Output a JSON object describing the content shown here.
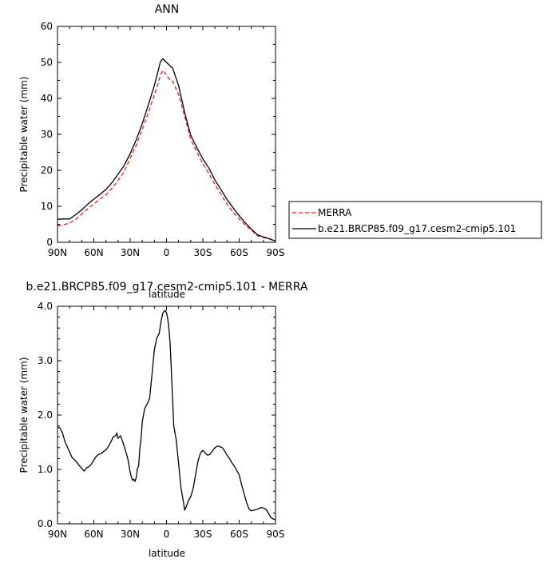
{
  "chart_data": [
    {
      "type": "line",
      "title": "ANN",
      "xlabel": "latitude",
      "ylabel": "Precipitable water (mm)",
      "xlim": [
        90,
        -90
      ],
      "ylim": [
        0,
        60
      ],
      "xticks": [
        90,
        60,
        30,
        0,
        -30,
        -60,
        -90
      ],
      "xtick_labels": [
        "90N",
        "60N",
        "30N",
        "0",
        "30S",
        "60S",
        "90S"
      ],
      "yticks": [
        0,
        10,
        20,
        30,
        40,
        50,
        60
      ],
      "ytick_labels": [
        "0",
        "10",
        "20",
        "30",
        "40",
        "50",
        "60"
      ],
      "legend_position": "right",
      "grid": false,
      "x": [
        90,
        85,
        80,
        75,
        70,
        65,
        60,
        55,
        50,
        45,
        40,
        35,
        30,
        25,
        20,
        15,
        10,
        7,
        5,
        3,
        0,
        -3,
        -5,
        -10,
        -15,
        -20,
        -25,
        -30,
        -35,
        -40,
        -45,
        -50,
        -55,
        -60,
        -65,
        -70,
        -75,
        -80,
        -85,
        -90
      ],
      "series": [
        {
          "name": "MERRA",
          "color": "#e8231f",
          "dash": "dashed",
          "values": [
            4.6,
            4.9,
            5.3,
            6.4,
            7.8,
            9.3,
            10.7,
            12.0,
            13.2,
            15.0,
            17.2,
            19.6,
            23.4,
            27.0,
            31.5,
            36.0,
            41.0,
            44.0,
            46.5,
            47.8,
            46.5,
            45.0,
            44.8,
            41.0,
            35.0,
            28.6,
            25.1,
            21.8,
            19.1,
            16.0,
            13.3,
            10.6,
            8.3,
            6.5,
            4.8,
            3.4,
            1.8,
            1.3,
            0.9,
            0.3
          ]
        },
        {
          "name": "b.e21.BRCP85.f09_g17.cesm2-cmip5.101",
          "color": "#000000",
          "dash": "solid",
          "values": [
            6.4,
            6.5,
            6.5,
            7.7,
            9.0,
            10.6,
            12.0,
            13.3,
            14.7,
            16.6,
            18.9,
            21.3,
            24.6,
            28.5,
            33.0,
            38.2,
            43.6,
            47.5,
            50.2,
            51.0,
            50.0,
            49.0,
            48.5,
            43.5,
            36.0,
            29.8,
            26.3,
            23.2,
            20.6,
            17.3,
            14.6,
            11.9,
            9.6,
            7.4,
            5.4,
            3.7,
            2.1,
            1.5,
            1.0,
            0.3
          ]
        }
      ]
    },
    {
      "type": "line",
      "title": "b.e21.BRCP85.f09_g17.cesm2-cmip5.101 - MERRA",
      "xlabel": "latitude",
      "ylabel": "Precipitable water (mm)",
      "xlim": [
        90,
        -90
      ],
      "ylim": [
        0,
        4
      ],
      "xticks": [
        90,
        60,
        30,
        0,
        -30,
        -60,
        -90
      ],
      "xtick_labels": [
        "90N",
        "60N",
        "30N",
        "0",
        "30S",
        "60S",
        "90S"
      ],
      "yticks": [
        0,
        1,
        2,
        3,
        4
      ],
      "ytick_labels": [
        "0.0",
        "1.0",
        "2.0",
        "3.0",
        "4.0"
      ],
      "grid": false,
      "x": [
        90,
        88,
        86,
        84,
        82,
        80,
        78,
        76,
        74,
        72,
        70,
        68,
        66,
        64,
        62,
        60,
        58,
        56,
        54,
        52,
        50,
        48,
        46,
        44,
        42,
        41,
        40,
        38,
        36,
        34,
        32,
        30,
        29,
        28,
        27,
        26,
        25,
        24,
        23,
        22,
        21,
        20,
        18,
        16,
        14,
        12,
        10,
        8,
        6,
        5,
        4,
        3,
        2,
        1,
        0,
        -1,
        -2,
        -3,
        -4,
        -5,
        -6,
        -8,
        -10,
        -12,
        -14,
        -15,
        -16,
        -18,
        -20,
        -22,
        -24,
        -26,
        -28,
        -30,
        -32,
        -34,
        -36,
        -38,
        -40,
        -42,
        -44,
        -46,
        -48,
        -50,
        -52,
        -54,
        -56,
        -58,
        -60,
        -62,
        -64,
        -66,
        -68,
        -70,
        -72,
        -74,
        -76,
        -78,
        -80,
        -82,
        -84,
        -86,
        -88,
        -90
      ],
      "series": [
        {
          "color": "#000000",
          "dash": "solid",
          "values": [
            1.78,
            1.76,
            1.68,
            1.52,
            1.42,
            1.32,
            1.22,
            1.18,
            1.13,
            1.07,
            1.02,
            0.97,
            1.03,
            1.05,
            1.1,
            1.17,
            1.24,
            1.28,
            1.29,
            1.33,
            1.36,
            1.42,
            1.5,
            1.6,
            1.62,
            1.67,
            1.57,
            1.62,
            1.5,
            1.36,
            1.2,
            0.95,
            0.86,
            0.8,
            0.82,
            0.78,
            0.85,
            1.02,
            1.06,
            1.38,
            1.58,
            1.88,
            2.12,
            2.2,
            2.3,
            2.74,
            3.2,
            3.42,
            3.5,
            3.65,
            3.78,
            3.87,
            3.91,
            3.92,
            3.88,
            3.78,
            3.6,
            3.3,
            2.8,
            2.3,
            1.8,
            1.55,
            1.1,
            0.65,
            0.4,
            0.25,
            0.3,
            0.42,
            0.5,
            0.65,
            0.9,
            1.15,
            1.3,
            1.35,
            1.3,
            1.26,
            1.28,
            1.34,
            1.4,
            1.43,
            1.42,
            1.4,
            1.34,
            1.26,
            1.2,
            1.12,
            1.06,
            0.98,
            0.9,
            0.72,
            0.56,
            0.4,
            0.28,
            0.24,
            0.25,
            0.26,
            0.28,
            0.3,
            0.29,
            0.27,
            0.2,
            0.12,
            0.09,
            0.07
          ]
        }
      ]
    }
  ]
}
